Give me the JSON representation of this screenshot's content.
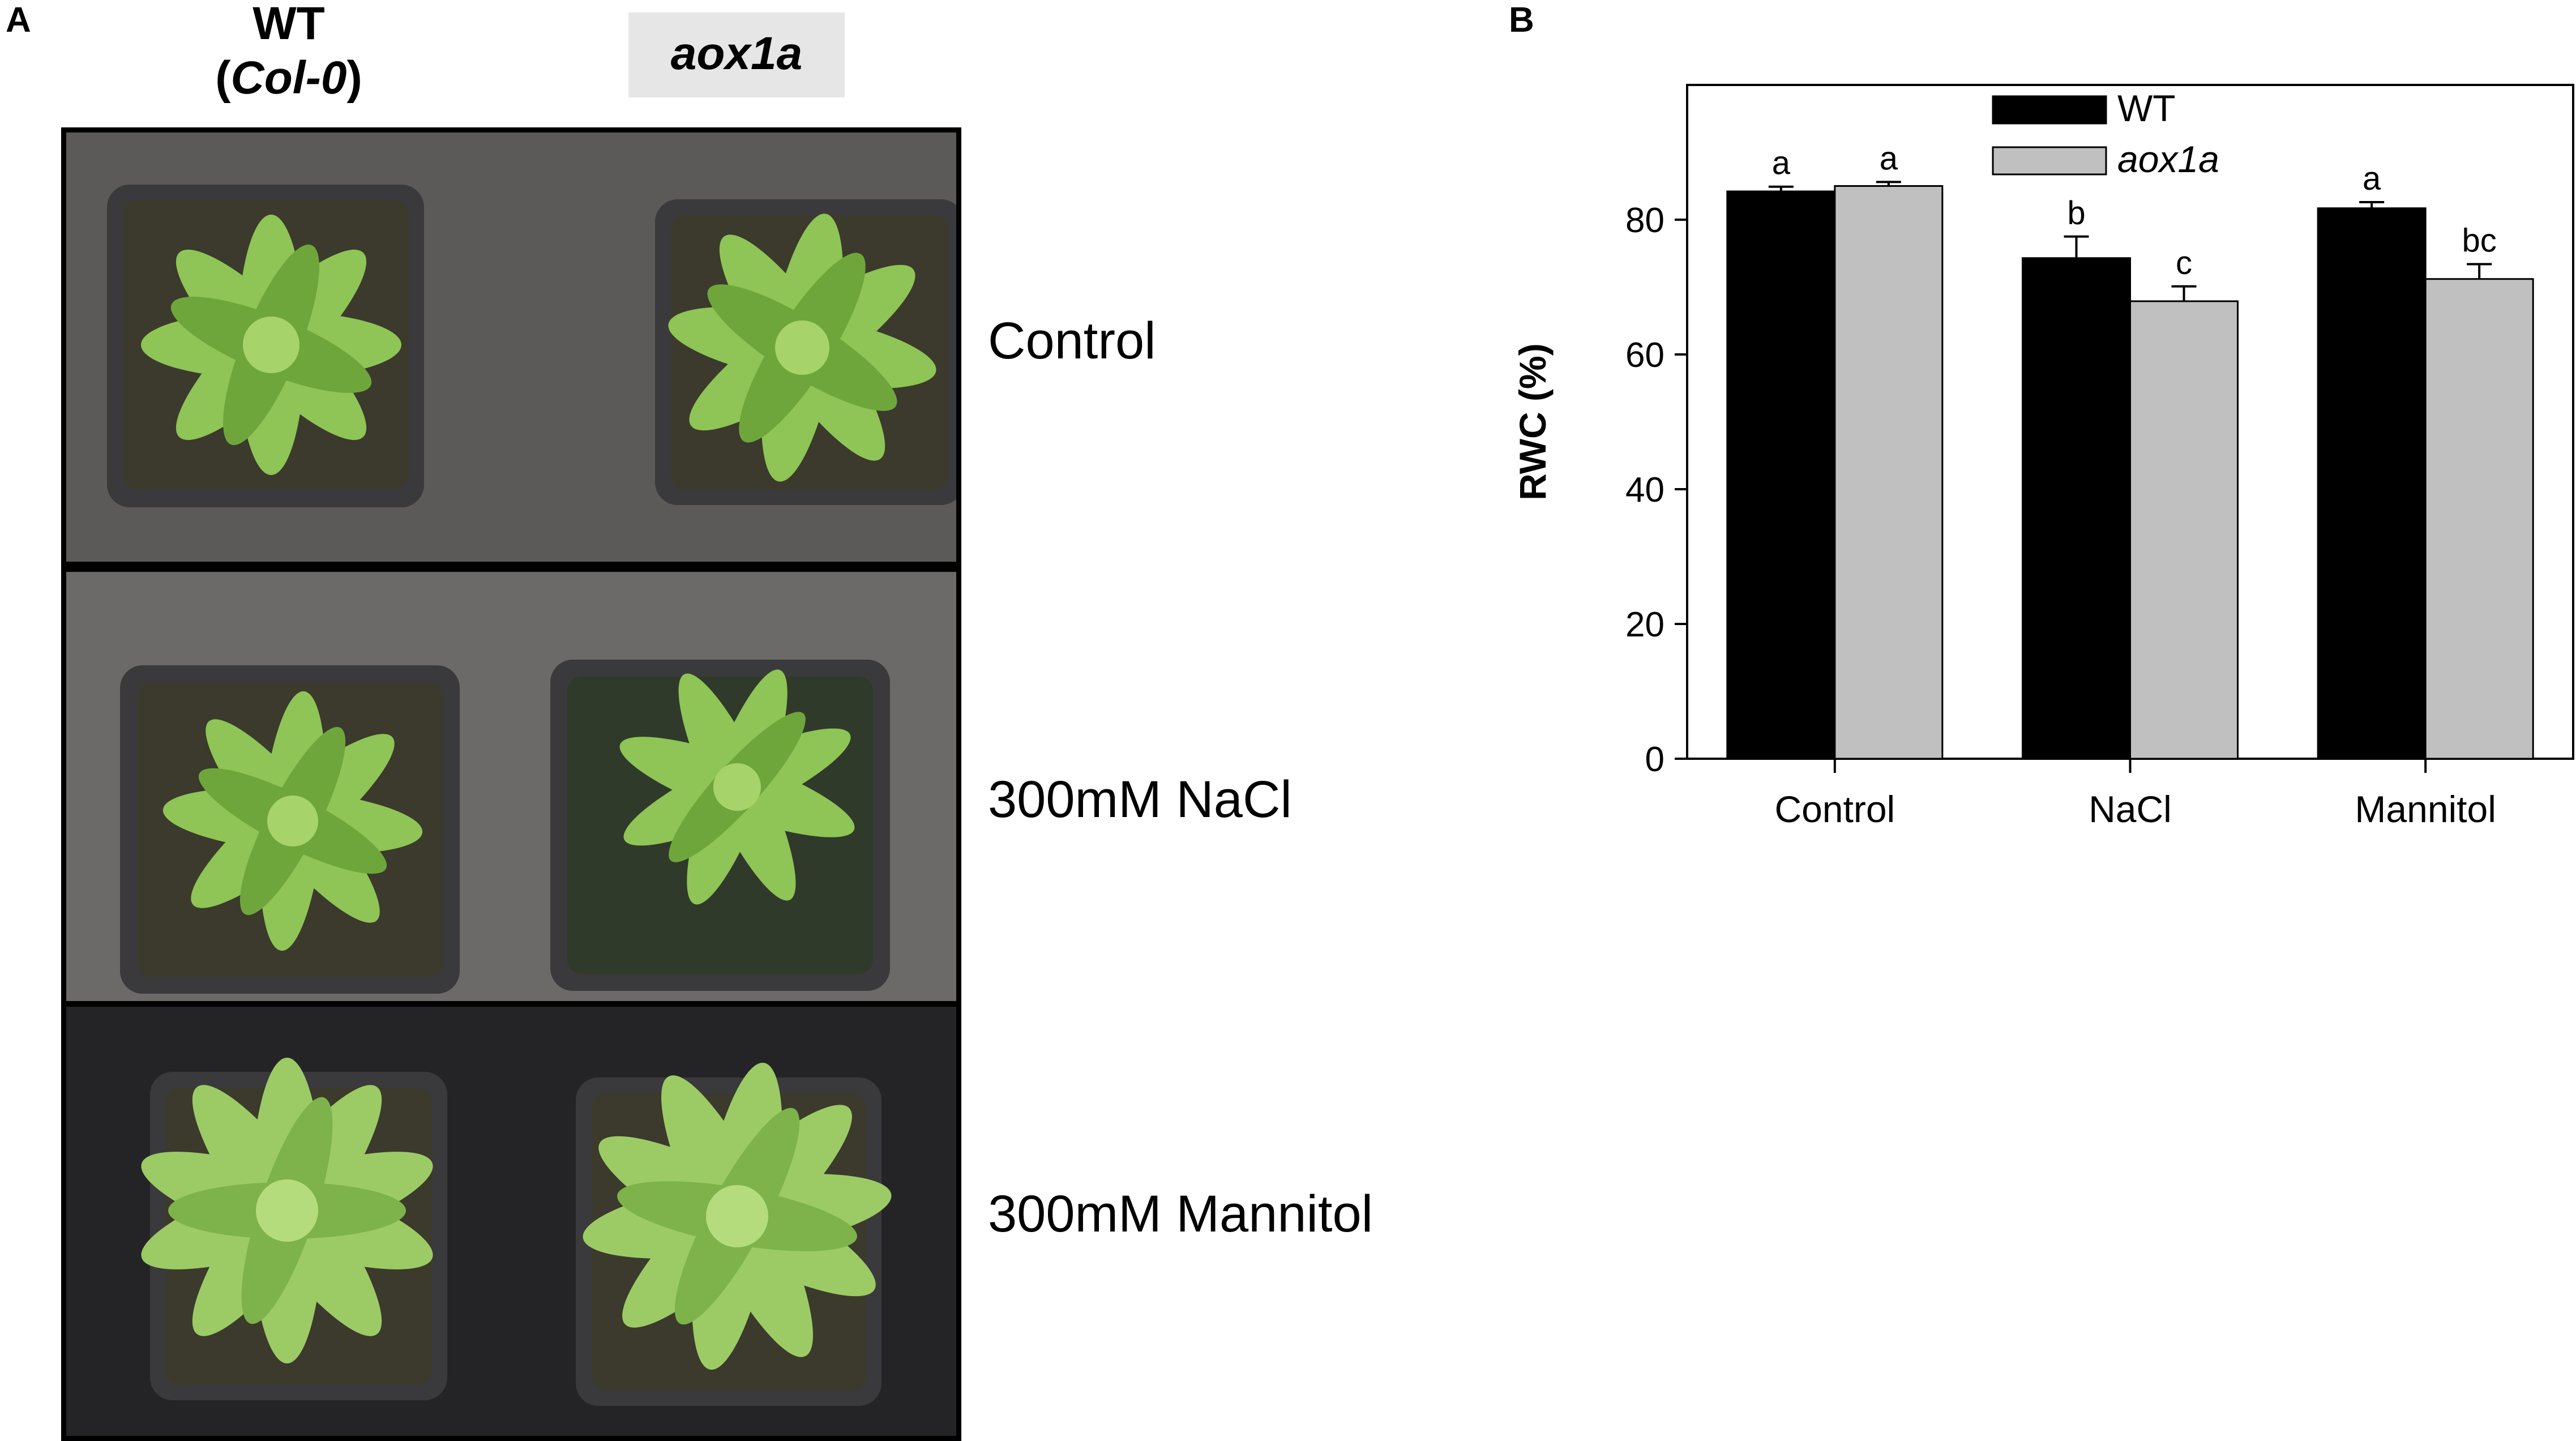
{
  "panel_a": {
    "letter": "A",
    "col_wt": "WT",
    "col_wt_sub_open": "(",
    "col_wt_sub": "Col-0",
    "col_wt_sub_close": ")",
    "col_mutant": "aox1a",
    "rows": [
      "Control",
      "300mM NaCl",
      "300mM Mannitol"
    ],
    "colors": {
      "bg_control": "#5b5a58",
      "bg_nacl": "#6b6a68",
      "bg_mannitol": "#242427",
      "pot": "#3a3a3c",
      "soil": "#3b3a2c",
      "leaf": "#8fc456",
      "leaf_dark": "#6fa63c"
    }
  },
  "panel_b": {
    "letter": "B",
    "chart_data": {
      "type": "bar",
      "categories": [
        "Control",
        "NaCl",
        "Mannitol"
      ],
      "series": [
        {
          "name": "WT",
          "color": "#000000",
          "values": [
            84.2,
            74.3,
            81.7
          ],
          "errors": [
            0.7,
            3.2,
            0.9
          ],
          "labels": [
            "a",
            "b",
            "a"
          ]
        },
        {
          "name": "aox1a",
          "color": "#c0c0c0",
          "values": [
            85.0,
            67.9,
            71.2
          ],
          "errors": [
            0.6,
            2.2,
            2.2
          ],
          "labels": [
            "a",
            "c",
            "bc"
          ]
        }
      ],
      "ylabel": "RWC (%)",
      "xlabel": "",
      "ylim": [
        0,
        100
      ],
      "yticks": [
        0,
        20,
        40,
        60,
        80
      ],
      "grid": false,
      "legend": "top-center"
    }
  }
}
